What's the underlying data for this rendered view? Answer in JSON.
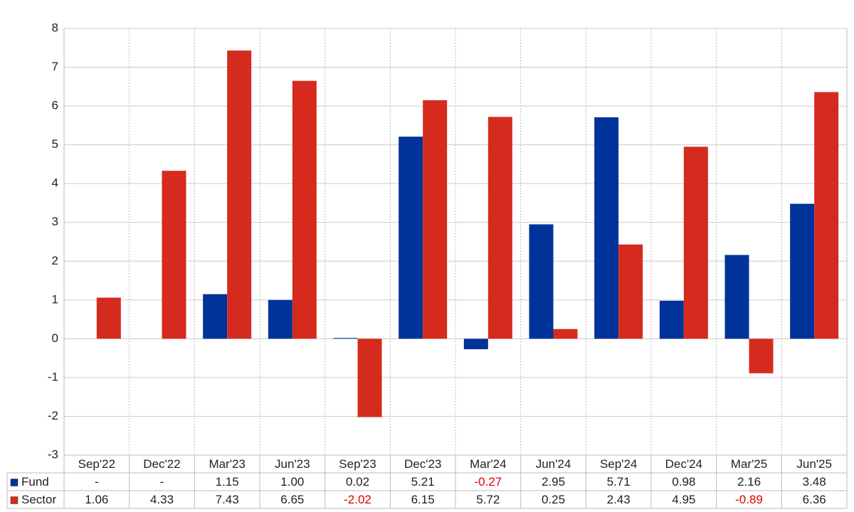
{
  "chart_data": {
    "type": "bar",
    "categories": [
      "Sep'22",
      "Dec'22",
      "Mar'23",
      "Jun'23",
      "Sep'23",
      "Dec'23",
      "Mar'24",
      "Jun'24",
      "Sep'24",
      "Dec'24",
      "Mar'25",
      "Jun'25"
    ],
    "series": [
      {
        "name": "Fund",
        "color": "#003399",
        "values": [
          null,
          null,
          1.15,
          1.0,
          0.02,
          5.21,
          -0.27,
          2.95,
          5.71,
          0.98,
          2.16,
          3.48
        ],
        "value_labels": [
          "-",
          "-",
          "1.15",
          "1.00",
          "0.02",
          "5.21",
          "-0.27",
          "2.95",
          "5.71",
          "0.98",
          "2.16",
          "3.48"
        ]
      },
      {
        "name": "Sector",
        "color": "#d52b1e",
        "values": [
          1.06,
          4.33,
          7.43,
          6.65,
          -2.02,
          6.15,
          5.72,
          0.25,
          2.43,
          4.95,
          -0.89,
          6.36
        ]
      }
    ],
    "ylim": [
      -3,
      8
    ],
    "yticks": [
      -3,
      -2,
      -1,
      0,
      1,
      2,
      3,
      4,
      5,
      6,
      7,
      8
    ],
    "grid": true
  }
}
